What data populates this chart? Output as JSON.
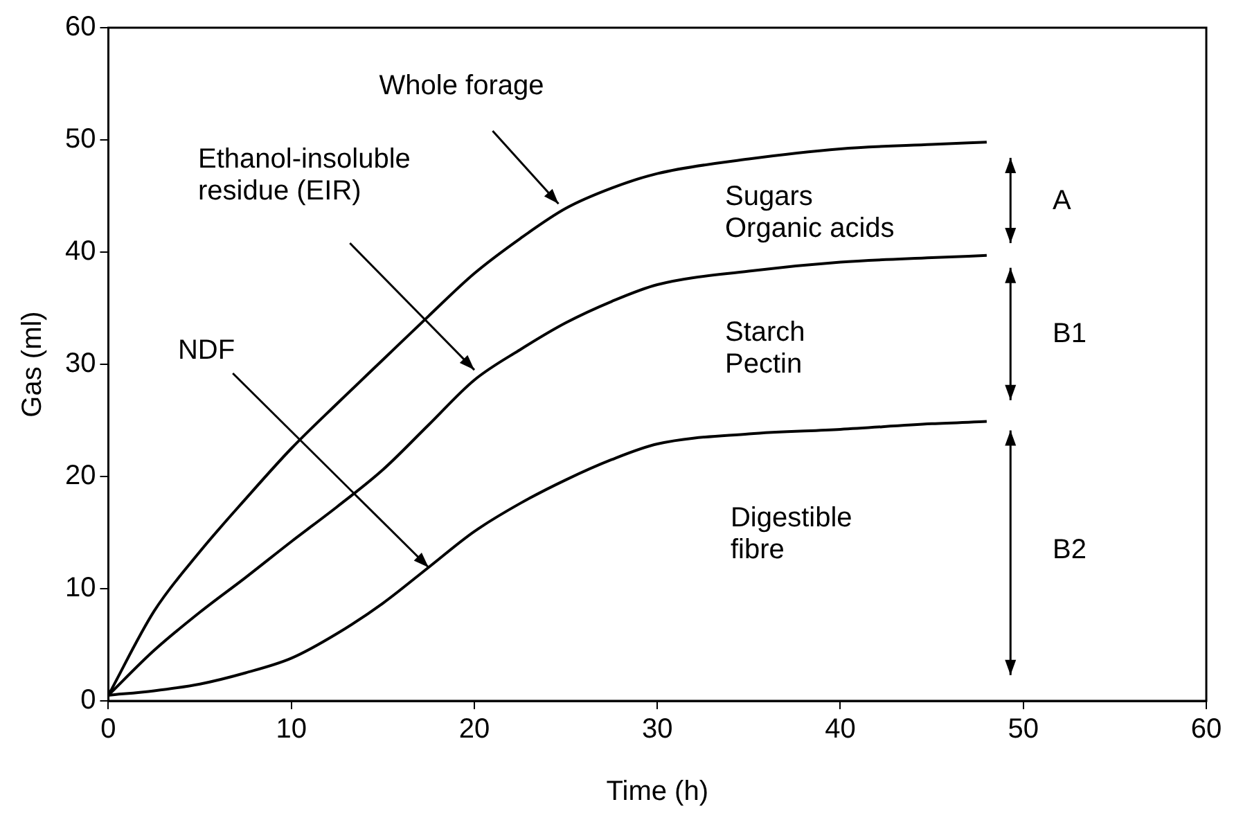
{
  "chart_data": {
    "type": "line",
    "xlabel": "Time (h)",
    "ylabel": "Gas (ml)",
    "x": [
      0,
      2.5,
      5,
      7.5,
      10,
      12.5,
      15,
      17.5,
      20,
      22.5,
      25,
      27.5,
      30,
      35,
      40,
      45,
      48
    ],
    "series": [
      {
        "color": "#000000",
        "values": [
          0.5,
          8,
          13.3,
          18,
          22.5,
          26.5,
          30.4,
          34.3,
          38.1,
          41.2,
          43.9,
          45.7,
          47,
          48.3,
          49.2,
          49.6,
          49.8
        ]
      },
      {
        "color": "#000000",
        "values": [
          0.5,
          4.5,
          7.9,
          11,
          14.2,
          17.3,
          20.6,
          24.6,
          28.6,
          31.3,
          33.7,
          35.6,
          37.1,
          38.3,
          39.1,
          39.5,
          39.7
        ]
      },
      {
        "color": "#000000",
        "values": [
          0.5,
          0.9,
          1.5,
          2.5,
          3.8,
          6,
          8.7,
          11.9,
          15.1,
          17.6,
          19.7,
          21.5,
          22.9,
          23.8,
          24.2,
          24.7,
          24.9
        ]
      }
    ],
    "xlim": [
      0,
      60
    ],
    "ylim": [
      0,
      60
    ],
    "xticks": [
      0,
      10,
      20,
      30,
      40,
      50,
      60
    ],
    "yticks": [
      0,
      10,
      20,
      30,
      40,
      50,
      60
    ],
    "grid": false,
    "legend": false,
    "marker": "none",
    "line_style": "solid",
    "annotations": [
      {
        "text": "Whole forage",
        "x": 24.6,
        "y": 44.3
      },
      "Ethanol-insoluble\nresidue (EIR)",
      {
        "text": "NDF",
        "x": 17.5,
        "y": 11.9
      },
      "Sugars\nOrganic acids",
      "Starch\nPectin",
      "Digestible\nfibre",
      "A",
      "B1",
      "B2"
    ]
  }
}
